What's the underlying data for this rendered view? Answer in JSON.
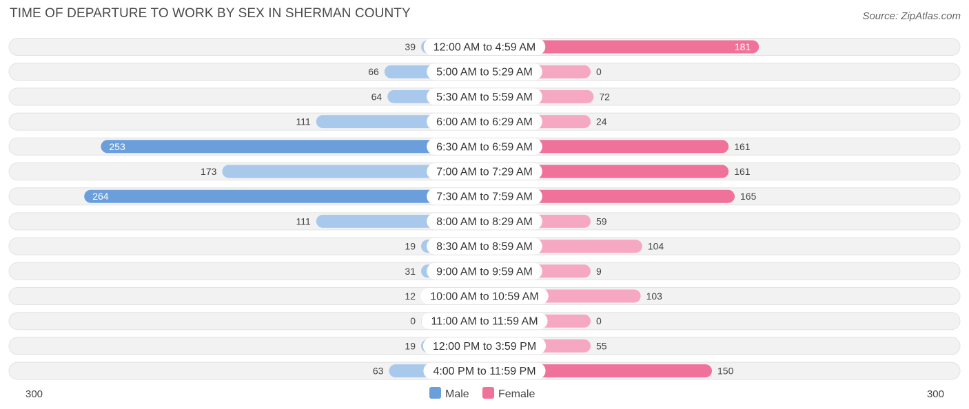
{
  "chart_data": {
    "type": "bar",
    "orientation": "horizontal-diverging",
    "title": "TIME OF DEPARTURE TO WORK BY SEX IN SHERMAN COUNTY",
    "source": "Source: ZipAtlas.com",
    "categories": [
      "12:00 AM to 4:59 AM",
      "5:00 AM to 5:29 AM",
      "5:30 AM to 5:59 AM",
      "6:00 AM to 6:29 AM",
      "6:30 AM to 6:59 AM",
      "7:00 AM to 7:29 AM",
      "7:30 AM to 7:59 AM",
      "8:00 AM to 8:29 AM",
      "8:30 AM to 8:59 AM",
      "9:00 AM to 9:59 AM",
      "10:00 AM to 10:59 AM",
      "11:00 AM to 11:59 AM",
      "12:00 PM to 3:59 PM",
      "4:00 PM to 11:59 PM"
    ],
    "series": [
      {
        "name": "Male",
        "values": [
          39,
          66,
          64,
          111,
          253,
          173,
          264,
          111,
          19,
          31,
          12,
          0,
          19,
          63
        ],
        "color": "#6a9fdb",
        "light_color": "#a9c9ec"
      },
      {
        "name": "Female",
        "values": [
          181,
          0,
          72,
          24,
          161,
          161,
          165,
          59,
          104,
          9,
          103,
          0,
          55,
          150
        ],
        "color": "#f0719a",
        "light_color": "#f6a8c2"
      }
    ],
    "axis_min_label": "300",
    "axis_max_label": "300",
    "xlim": [
      -300,
      300
    ],
    "legend": [
      "Male",
      "Female"
    ],
    "legend_position": "bottom-center"
  }
}
